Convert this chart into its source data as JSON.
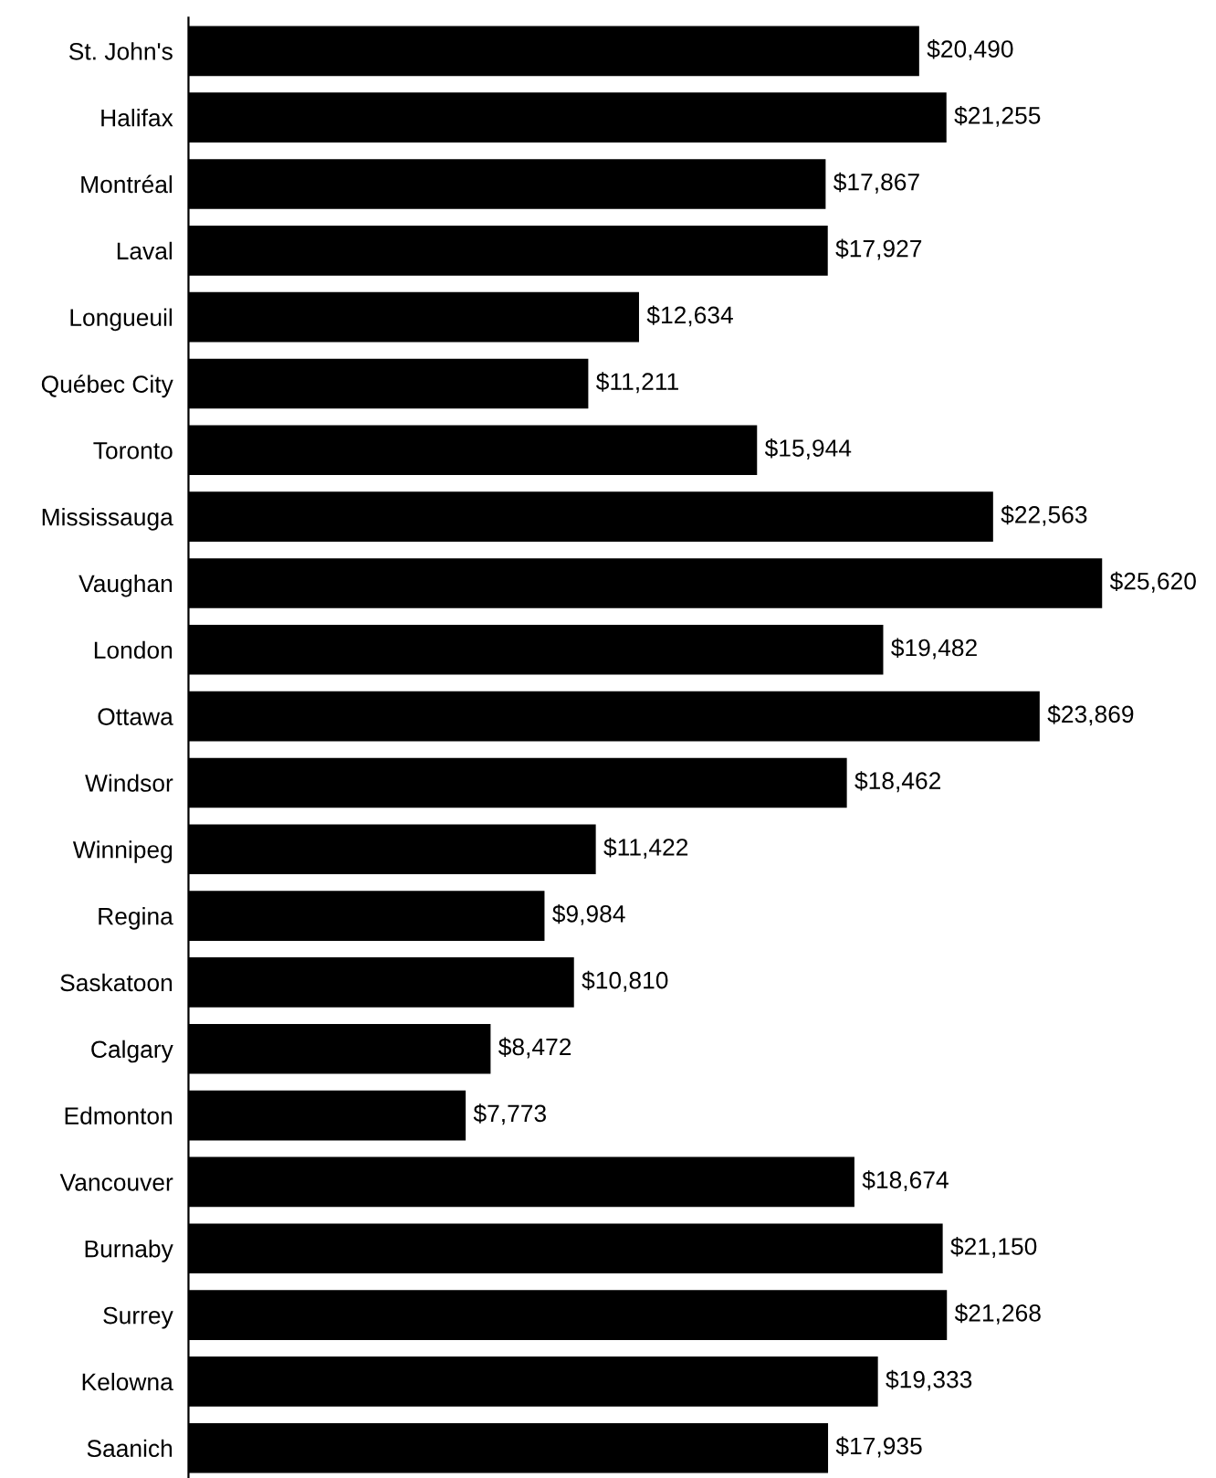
{
  "chart_data": {
    "type": "bar",
    "orientation": "horizontal",
    "data_labels": true,
    "grid": false,
    "legend": false,
    "categories": [
      "St. John's",
      "Halifax",
      "Montréal",
      "Laval",
      "Longueuil",
      "Québec City",
      "Toronto",
      "Mississauga",
      "Vaughan",
      "London",
      "Ottawa",
      "Windsor",
      "Winnipeg",
      "Regina",
      "Saskatoon",
      "Calgary",
      "Edmonton",
      "Vancouver",
      "Burnaby",
      "Surrey",
      "Kelowna",
      "Saanich"
    ],
    "values": [
      20490,
      21255,
      17867,
      17927,
      12634,
      11211,
      15944,
      22563,
      25620,
      19482,
      23869,
      18462,
      11422,
      9984,
      10810,
      8472,
      7773,
      18674,
      21150,
      21268,
      19333,
      17935
    ],
    "value_labels": [
      "$20,490",
      "$21,255",
      "$17,867",
      "$17,927",
      "$12,634",
      "$11,211",
      "$15,944",
      "$22,563",
      "$25,620",
      "$19,482",
      "$23,869",
      "$18,462",
      "$11,422",
      "$9,984",
      "$10,810",
      "$8,472",
      "$7,773",
      "$18,674",
      "$21,150",
      "$21,268",
      "$19,333",
      "$17,935"
    ],
    "color": "#000000"
  }
}
